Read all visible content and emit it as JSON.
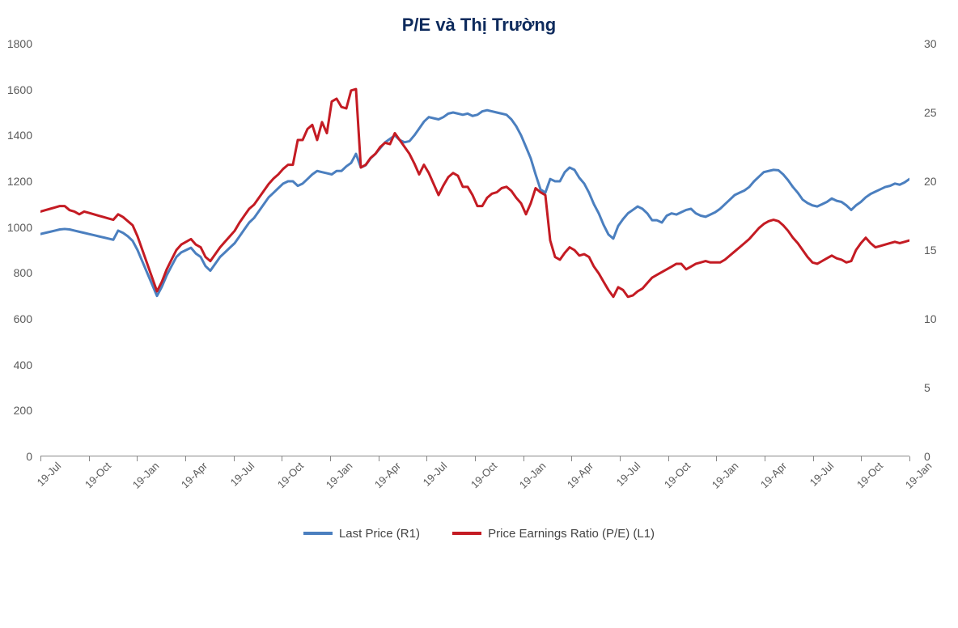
{
  "chart": {
    "type": "line",
    "title": "P/E và Thị Trường",
    "title_fontsize": 22,
    "title_color": "#0d2a5c",
    "background_color": "#ffffff",
    "axis_color": "#888888",
    "tick_label_color": "#5a5a5a",
    "tick_fontsize": 14,
    "x": {
      "labels": [
        "19-Jul",
        "19-Oct",
        "19-Jan",
        "19-Apr",
        "19-Jul",
        "19-Oct",
        "19-Jan",
        "19-Apr",
        "19-Jul",
        "19-Oct",
        "19-Jan",
        "19-Apr",
        "19-Jul",
        "19-Oct",
        "19-Jan",
        "19-Apr",
        "19-Jul",
        "19-Oct",
        "19-Jan"
      ],
      "label_rotation": -45
    },
    "y_left": {
      "min": 0,
      "max": 1800,
      "tick_step": 200,
      "ticks": [
        0,
        200,
        400,
        600,
        800,
        1000,
        1200,
        1400,
        1600,
        1800
      ]
    },
    "y_right": {
      "min": 0,
      "max": 30,
      "tick_step": 5,
      "ticks": [
        0,
        5,
        10,
        15,
        20,
        25,
        30
      ]
    },
    "series": [
      {
        "name": "Last Price  (R1)",
        "axis": "left",
        "color": "#4b7fbf",
        "line_width": 3,
        "data": [
          970,
          975,
          980,
          985,
          990,
          992,
          990,
          985,
          980,
          975,
          970,
          965,
          960,
          955,
          950,
          945,
          985,
          975,
          960,
          940,
          900,
          850,
          800,
          750,
          700,
          740,
          790,
          830,
          870,
          890,
          900,
          910,
          885,
          870,
          830,
          810,
          840,
          870,
          890,
          910,
          930,
          960,
          990,
          1020,
          1040,
          1070,
          1100,
          1130,
          1150,
          1170,
          1190,
          1200,
          1200,
          1180,
          1190,
          1210,
          1230,
          1245,
          1240,
          1235,
          1230,
          1245,
          1245,
          1265,
          1280,
          1320,
          1260,
          1270,
          1300,
          1320,
          1345,
          1370,
          1385,
          1400,
          1380,
          1370,
          1375,
          1400,
          1430,
          1460,
          1480,
          1475,
          1470,
          1480,
          1495,
          1500,
          1495,
          1490,
          1495,
          1485,
          1490,
          1505,
          1510,
          1505,
          1500,
          1495,
          1490,
          1470,
          1440,
          1400,
          1350,
          1300,
          1230,
          1165,
          1150,
          1210,
          1200,
          1200,
          1240,
          1260,
          1250,
          1215,
          1190,
          1150,
          1100,
          1060,
          1010,
          968,
          950,
          1005,
          1035,
          1060,
          1075,
          1090,
          1080,
          1060,
          1030,
          1030,
          1020,
          1050,
          1060,
          1055,
          1065,
          1075,
          1080,
          1060,
          1050,
          1045,
          1055,
          1065,
          1080,
          1100,
          1120,
          1140,
          1150,
          1160,
          1175,
          1200,
          1220,
          1240,
          1245,
          1250,
          1248,
          1230,
          1205,
          1175,
          1150,
          1120,
          1105,
          1095,
          1090,
          1100,
          1110,
          1125,
          1115,
          1110,
          1095,
          1075,
          1095,
          1110,
          1130,
          1145,
          1155,
          1165,
          1175,
          1180,
          1190,
          1185,
          1195,
          1210
        ]
      },
      {
        "name": "Price Earnings Ratio (P/E)  (L1)",
        "axis": "right",
        "color": "#c41b23",
        "line_width": 3,
        "data": [
          17.8,
          17.9,
          18.0,
          18.1,
          18.2,
          18.2,
          17.9,
          17.8,
          17.6,
          17.8,
          17.7,
          17.6,
          17.5,
          17.4,
          17.3,
          17.2,
          17.6,
          17.4,
          17.1,
          16.8,
          16.0,
          15.0,
          14.0,
          13.0,
          12.0,
          12.7,
          13.6,
          14.3,
          15.0,
          15.4,
          15.6,
          15.8,
          15.4,
          15.2,
          14.5,
          14.2,
          14.7,
          15.2,
          15.6,
          16.0,
          16.4,
          17.0,
          17.5,
          18.0,
          18.3,
          18.8,
          19.3,
          19.8,
          20.2,
          20.5,
          20.9,
          21.2,
          21.2,
          23.0,
          23.0,
          23.8,
          24.1,
          23.0,
          24.3,
          23.5,
          25.8,
          26.0,
          25.4,
          25.3,
          26.6,
          26.7,
          21.0,
          21.2,
          21.7,
          22.0,
          22.5,
          22.8,
          22.7,
          23.5,
          23.0,
          22.5,
          22.0,
          21.3,
          20.5,
          21.2,
          20.6,
          19.8,
          19.0,
          19.7,
          20.3,
          20.6,
          20.4,
          19.6,
          19.6,
          19.0,
          18.2,
          18.2,
          18.8,
          19.1,
          19.2,
          19.5,
          19.6,
          19.3,
          18.8,
          18.4,
          17.6,
          18.4,
          19.5,
          19.2,
          19.0,
          15.7,
          14.5,
          14.3,
          14.8,
          15.2,
          15.0,
          14.6,
          14.7,
          14.5,
          13.8,
          13.3,
          12.7,
          12.1,
          11.6,
          12.3,
          12.1,
          11.6,
          11.7,
          12.0,
          12.2,
          12.6,
          13.0,
          13.2,
          13.4,
          13.6,
          13.8,
          14.0,
          14.0,
          13.6,
          13.8,
          14.0,
          14.1,
          14.2,
          14.1,
          14.1,
          14.1,
          14.3,
          14.6,
          14.9,
          15.2,
          15.5,
          15.8,
          16.2,
          16.6,
          16.9,
          17.1,
          17.2,
          17.1,
          16.8,
          16.4,
          15.9,
          15.5,
          15.0,
          14.5,
          14.1,
          14.0,
          14.2,
          14.4,
          14.6,
          14.4,
          14.3,
          14.1,
          14.2,
          15.0,
          15.5,
          15.9,
          15.5,
          15.2,
          15.3,
          15.4,
          15.5,
          15.6,
          15.5,
          15.6,
          15.7
        ]
      }
    ],
    "legend": {
      "position": "bottom",
      "items": [
        "Last Price  (R1)",
        "Price Earnings Ratio (P/E)  (L1)"
      ],
      "fontsize": 15
    }
  }
}
